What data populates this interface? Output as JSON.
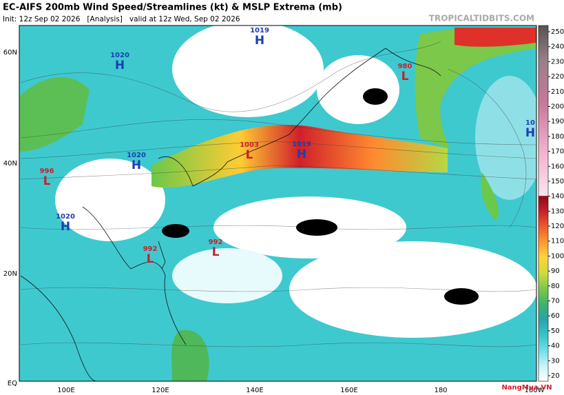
{
  "header": {
    "title": "EC-AIFS 200mb Wind Speed/Streamlines (kt) & MSLP Extrema (mb)",
    "subtitle": "Init: 12z Sep 02 2026   [Analysis]   valid at 12z Wed, Sep 02 2026",
    "source": "TROPICALTIDBITS.COM"
  },
  "lat_labels": [
    "60N",
    "40N",
    "20N",
    "EQ"
  ],
  "lon_labels": [
    "100E",
    "120E",
    "140E",
    "160E",
    "180",
    "160W"
  ],
  "colorbar_ticks": [
    "250",
    "240",
    "230",
    "220",
    "210",
    "200",
    "190",
    "180",
    "170",
    "160",
    "150",
    "140",
    "130",
    "120",
    "110",
    "100",
    "90",
    "80",
    "70",
    "60",
    "50",
    "40",
    "30",
    "20"
  ],
  "pressure_centers": [
    {
      "value": "1019",
      "letter": "H"
    },
    {
      "value": "1020",
      "letter": "H"
    },
    {
      "value": "980",
      "letter": "L"
    },
    {
      "value": "1003",
      "letter": "L"
    },
    {
      "value": "1019",
      "letter": "H"
    },
    {
      "value": "1020",
      "letter": "H"
    },
    {
      "value": "996",
      "letter": "L"
    },
    {
      "value": "1020",
      "letter": "H"
    },
    {
      "value": "992",
      "letter": "L"
    },
    {
      "value": "992",
      "letter": "L"
    },
    {
      "value": "10",
      "letter": "H"
    }
  ],
  "watermark": "NangMua.VN"
}
